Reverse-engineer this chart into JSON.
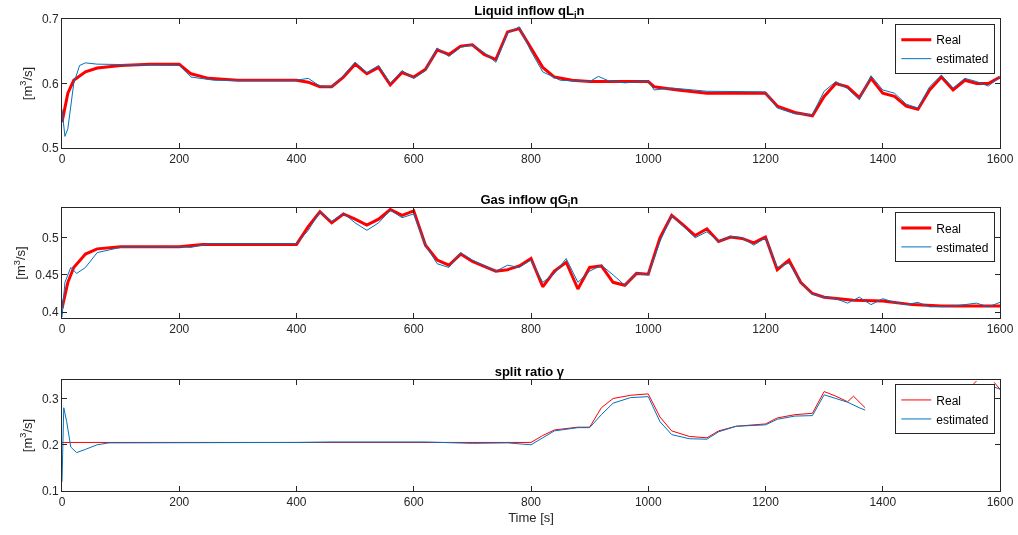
{
  "chart_data": [
    {
      "type": "line",
      "title": "Liquid inflow qL$_{i}$n",
      "ylabel": "[m$^{3}$/s]",
      "xlim": [
        0,
        1600
      ],
      "xticks": [
        0,
        200,
        400,
        600,
        800,
        1000,
        1200,
        1400,
        1600
      ],
      "ylim": [
        0.5,
        0.7
      ],
      "yticks": [
        0.5,
        0.6,
        0.7
      ],
      "legend": "top right",
      "grid": false,
      "line_style": "solid",
      "series": [
        {
          "name": "Real",
          "color": "#ff0000",
          "x": [
            0,
            10,
            20,
            40,
            60,
            100,
            150,
            200,
            220,
            250,
            300,
            400,
            420,
            440,
            460,
            480,
            500,
            520,
            540,
            560,
            580,
            600,
            620,
            640,
            660,
            680,
            700,
            720,
            740,
            760,
            780,
            800,
            820,
            840,
            870,
            900,
            1000,
            1010,
            1050,
            1100,
            1200,
            1220,
            1250,
            1280,
            1300,
            1320,
            1340,
            1360,
            1380,
            1400,
            1420,
            1440,
            1460,
            1480,
            1500,
            1520,
            1540,
            1560,
            1580,
            1600
          ],
          "values": [
            0.54,
            0.585,
            0.605,
            0.618,
            0.624,
            0.628,
            0.63,
            0.63,
            0.615,
            0.608,
            0.605,
            0.605,
            0.602,
            0.595,
            0.595,
            0.61,
            0.63,
            0.615,
            0.625,
            0.598,
            0.617,
            0.61,
            0.622,
            0.652,
            0.645,
            0.658,
            0.66,
            0.645,
            0.637,
            0.68,
            0.685,
            0.655,
            0.625,
            0.61,
            0.605,
            0.603,
            0.603,
            0.595,
            0.59,
            0.585,
            0.585,
            0.565,
            0.555,
            0.55,
            0.58,
            0.6,
            0.595,
            0.578,
            0.608,
            0.585,
            0.58,
            0.565,
            0.56,
            0.59,
            0.61,
            0.59,
            0.605,
            0.6,
            0.6,
            0.61
          ]
        },
        {
          "name": "estimated",
          "color": "#0072bd",
          "x": [
            0,
            5,
            10,
            20,
            30,
            40,
            60,
            200,
            220,
            260,
            400,
            420,
            440,
            460,
            480,
            500,
            520,
            540,
            560,
            580,
            600,
            620,
            640,
            660,
            680,
            700,
            720,
            740,
            760,
            780,
            800,
            820,
            850,
            900,
            915,
            930,
            960,
            1000,
            1010,
            1040,
            1100,
            1200,
            1220,
            1250,
            1280,
            1300,
            1320,
            1340,
            1360,
            1380,
            1400,
            1420,
            1440,
            1460,
            1480,
            1500,
            1520,
            1540,
            1560,
            1580,
            1600
          ],
          "values": [
            0.56,
            0.518,
            0.53,
            0.6,
            0.628,
            0.632,
            0.63,
            0.628,
            0.61,
            0.605,
            0.605,
            0.608,
            0.596,
            0.595,
            0.612,
            0.633,
            0.617,
            0.628,
            0.6,
            0.62,
            0.608,
            0.62,
            0.655,
            0.642,
            0.656,
            0.66,
            0.648,
            0.633,
            0.678,
            0.688,
            0.65,
            0.618,
            0.605,
            0.603,
            0.611,
            0.605,
            0.601,
            0.604,
            0.59,
            0.593,
            0.588,
            0.587,
            0.562,
            0.553,
            0.552,
            0.588,
            0.603,
            0.592,
            0.575,
            0.612,
            0.59,
            0.585,
            0.568,
            0.562,
            0.595,
            0.613,
            0.593,
            0.608,
            0.603,
            0.596,
            0.61
          ]
        }
      ]
    },
    {
      "type": "line",
      "title": "Gas inflow qG$_{i}$n",
      "ylabel": "[m$^{3}$/s]",
      "xlim": [
        0,
        1600
      ],
      "xticks": [
        0,
        200,
        400,
        600,
        800,
        1000,
        1200,
        1400,
        1600
      ],
      "ylim": [
        0.392,
        0.54
      ],
      "yticks": [
        0.4,
        0.45,
        0.5
      ],
      "legend": "top right",
      "grid": false,
      "line_style": "solid",
      "series": [
        {
          "name": "Real",
          "color": "#ff0000",
          "x": [
            0,
            10,
            20,
            40,
            60,
            100,
            200,
            240,
            400,
            420,
            440,
            460,
            480,
            500,
            520,
            540,
            560,
            580,
            600,
            620,
            640,
            660,
            680,
            700,
            740,
            760,
            780,
            800,
            820,
            840,
            860,
            880,
            900,
            920,
            940,
            960,
            980,
            1000,
            1020,
            1040,
            1060,
            1080,
            1100,
            1120,
            1140,
            1160,
            1180,
            1200,
            1220,
            1240,
            1260,
            1280,
            1300,
            1350,
            1400,
            1450,
            1500,
            1600
          ],
          "values": [
            0.405,
            0.44,
            0.46,
            0.478,
            0.485,
            0.488,
            0.488,
            0.491,
            0.491,
            0.515,
            0.535,
            0.52,
            0.532,
            0.525,
            0.517,
            0.525,
            0.538,
            0.53,
            0.536,
            0.49,
            0.47,
            0.463,
            0.478,
            0.468,
            0.455,
            0.457,
            0.462,
            0.472,
            0.434,
            0.455,
            0.467,
            0.431,
            0.46,
            0.462,
            0.44,
            0.436,
            0.452,
            0.451,
            0.5,
            0.53,
            0.517,
            0.503,
            0.512,
            0.495,
            0.501,
            0.499,
            0.493,
            0.501,
            0.457,
            0.47,
            0.44,
            0.425,
            0.42,
            0.416,
            0.415,
            0.41,
            0.408,
            0.408
          ]
        },
        {
          "name": "estimated",
          "color": "#0072bd",
          "x": [
            0,
            5,
            15,
            25,
            40,
            60,
            100,
            200,
            220,
            250,
            400,
            420,
            440,
            460,
            480,
            500,
            520,
            540,
            560,
            580,
            600,
            620,
            640,
            660,
            680,
            700,
            740,
            760,
            780,
            800,
            820,
            840,
            860,
            880,
            900,
            920,
            940,
            960,
            980,
            1000,
            1020,
            1040,
            1060,
            1080,
            1100,
            1120,
            1140,
            1160,
            1180,
            1200,
            1220,
            1240,
            1260,
            1280,
            1300,
            1320,
            1340,
            1360,
            1380,
            1400,
            1420,
            1440,
            1460,
            1480,
            1520,
            1560,
            1580,
            1600
          ],
          "values": [
            0.393,
            0.44,
            0.46,
            0.452,
            0.46,
            0.48,
            0.487,
            0.488,
            0.487,
            0.492,
            0.492,
            0.51,
            0.535,
            0.522,
            0.533,
            0.52,
            0.51,
            0.52,
            0.537,
            0.527,
            0.532,
            0.49,
            0.465,
            0.46,
            0.48,
            0.47,
            0.455,
            0.463,
            0.46,
            0.47,
            0.44,
            0.452,
            0.472,
            0.44,
            0.455,
            0.463,
            0.45,
            0.436,
            0.452,
            0.45,
            0.495,
            0.53,
            0.515,
            0.5,
            0.508,
            0.495,
            0.502,
            0.5,
            0.49,
            0.5,
            0.46,
            0.466,
            0.44,
            0.424,
            0.42,
            0.418,
            0.412,
            0.42,
            0.41,
            0.418,
            0.413,
            0.41,
            0.413,
            0.407,
            0.408,
            0.412,
            0.407,
            0.413
          ]
        }
      ]
    },
    {
      "type": "line",
      "title": "split ratio γ",
      "xlabel": "Time [s]",
      "ylabel": "[m$^{3}$/s]",
      "xlim": [
        0,
        1600
      ],
      "xticks": [
        0,
        200,
        400,
        600,
        800,
        1000,
        1200,
        1400,
        1600
      ],
      "ylim": [
        0.1,
        0.34
      ],
      "yticks": [
        0.1,
        0.2,
        0.3
      ],
      "legend": "top right",
      "grid": false,
      "line_style": "solid",
      "series": [
        {
          "name": "Real",
          "color": "#ff0000",
          "x": [
            0,
            800,
            820,
            840,
            880,
            900,
            920,
            940,
            970,
            1000,
            1020,
            1040,
            1070,
            1100,
            1120,
            1150,
            1200,
            1220,
            1250,
            1280,
            1300,
            1320,
            1340,
            1350,
            1370,
            1380,
            1550,
            1560,
            1570,
            1590,
            1600
          ],
          "values": [
            0.205,
            0.205,
            0.22,
            0.232,
            0.238,
            0.238,
            0.28,
            0.3,
            0.307,
            0.31,
            0.26,
            0.23,
            0.218,
            0.215,
            0.23,
            0.24,
            0.245,
            0.258,
            0.265,
            0.268,
            0.315,
            0.305,
            0.293,
            0.305,
            0.28,
            null,
            0.325,
            0.338,
            null,
            0.335,
            0.32
          ]
        },
        {
          "name": "estimated",
          "color": "#0072bd",
          "x": [
            0,
            3,
            8,
            15,
            25,
            40,
            60,
            80,
            400,
            460,
            620,
            700,
            760,
            800,
            820,
            840,
            880,
            900,
            920,
            940,
            970,
            1000,
            1020,
            1040,
            1070,
            1100,
            1120,
            1150,
            1200,
            1220,
            1250,
            1280,
            1300,
            1320,
            1340,
            1360,
            1370,
            1380,
            1550,
            1560,
            1570,
            1590,
            1600
          ],
          "values": [
            0.12,
            0.28,
            0.25,
            0.195,
            0.183,
            0.19,
            0.2,
            0.204,
            0.205,
            0.206,
            0.206,
            0.203,
            0.204,
            0.2,
            0.215,
            0.23,
            0.237,
            0.237,
            0.265,
            0.29,
            0.302,
            0.304,
            0.25,
            0.222,
            0.213,
            0.212,
            0.228,
            0.24,
            0.243,
            0.255,
            0.262,
            0.263,
            0.308,
            0.3,
            0.292,
            0.28,
            0.275,
            null,
            null,
            null,
            null,
            0.325,
            0.32
          ]
        }
      ]
    }
  ]
}
